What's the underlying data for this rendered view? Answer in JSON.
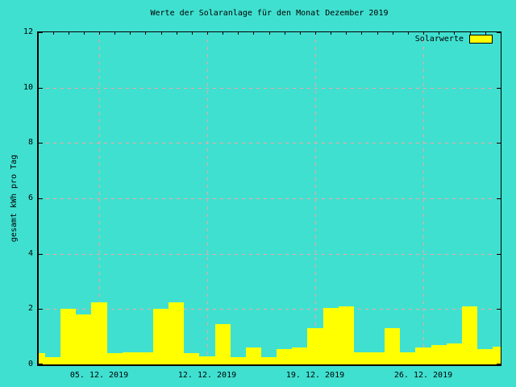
{
  "title": "Werte der Solaranlage für den Monat Dezember 2019",
  "legend": {
    "label": "Solarwerte"
  },
  "colors": {
    "background": "#40e0d0",
    "bar": "#ffff00",
    "grid": "#ffa0a0",
    "axis": "#000000",
    "text": "#000000"
  },
  "chart_data": {
    "type": "bar",
    "title": "Werte der Solaranlage für den Monat Dezember 2019",
    "xlabel": "",
    "ylabel": "gesamt kWh pro Tag",
    "ylim": [
      0,
      12
    ],
    "yticks": [
      0,
      2,
      4,
      6,
      8,
      10,
      12
    ],
    "grid": true,
    "legend_position": "top-right-inside",
    "x_days": [
      1,
      2,
      3,
      4,
      5,
      6,
      7,
      8,
      9,
      10,
      11,
      12,
      13,
      14,
      15,
      16,
      17,
      18,
      19,
      20,
      21,
      22,
      23,
      24,
      25,
      26,
      27,
      28,
      29,
      30,
      31
    ],
    "series": [
      {
        "name": "Solarwerte",
        "color": "#ffff00",
        "values": [
          0.4,
          0.25,
          2.0,
          1.8,
          2.25,
          0.4,
          0.45,
          0.45,
          2.0,
          2.25,
          0.4,
          0.3,
          1.45,
          0.25,
          0.6,
          0.25,
          0.55,
          0.6,
          1.3,
          2.05,
          2.1,
          0.45,
          0.45,
          1.3,
          0.45,
          0.6,
          0.7,
          0.75,
          2.1,
          0.55,
          0.65
        ]
      }
    ],
    "xticks": [
      {
        "day": 5,
        "label": "05. 12. 2019"
      },
      {
        "day": 12,
        "label": "12. 12. 2019"
      },
      {
        "day": 19,
        "label": "19. 12. 2019"
      },
      {
        "day": 26,
        "label": "26. 12. 2019"
      }
    ]
  }
}
